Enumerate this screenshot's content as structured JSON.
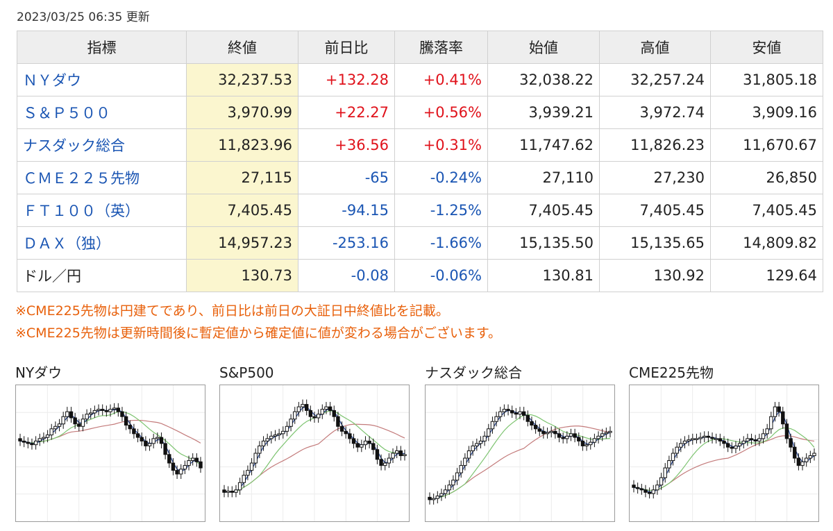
{
  "updated": "2023/03/25 06:35 更新",
  "table": {
    "headers": [
      "指標",
      "終値",
      "前日比",
      "騰落率",
      "始値",
      "高値",
      "安値"
    ],
    "rows": [
      {
        "name": "ＮＹダウ",
        "link": true,
        "close": "32,237.53",
        "change": "+132.28",
        "pct": "+0.41%",
        "open": "32,038.22",
        "high": "32,257.24",
        "low": "31,805.18",
        "dir": "up"
      },
      {
        "name": "Ｓ＆Ｐ５００",
        "link": true,
        "close": "3,970.99",
        "change": "+22.27",
        "pct": "+0.56%",
        "open": "3,939.21",
        "high": "3,972.74",
        "low": "3,909.16",
        "dir": "up"
      },
      {
        "name": "ナスダック総合",
        "link": true,
        "close": "11,823.96",
        "change": "+36.56",
        "pct": "+0.31%",
        "open": "11,747.62",
        "high": "11,826.23",
        "low": "11,670.67",
        "dir": "up"
      },
      {
        "name": "ＣＭＥ２２５先物",
        "link": true,
        "close": "27,115",
        "change": "-65",
        "pct": "-0.24%",
        "open": "27,110",
        "high": "27,230",
        "low": "26,850",
        "dir": "down"
      },
      {
        "name": "ＦＴ１００（英）",
        "link": true,
        "close": "7,405.45",
        "change": "-94.15",
        "pct": "-1.25%",
        "open": "7,405.45",
        "high": "7,405.45",
        "low": "7,405.45",
        "dir": "down"
      },
      {
        "name": "ＤＡＸ（独）",
        "link": true,
        "close": "14,957.23",
        "change": "-253.16",
        "pct": "-1.66%",
        "open": "15,135.50",
        "high": "15,135.65",
        "low": "14,809.82",
        "dir": "down"
      },
      {
        "name": "ドル／円",
        "link": false,
        "close": "130.73",
        "change": "-0.08",
        "pct": "-0.06%",
        "open": "130.81",
        "high": "130.92",
        "low": "129.64",
        "dir": "down"
      }
    ]
  },
  "notes": [
    "※CME225先物は円建てであり、前日比は前日の大証日中終値比を記載。",
    "※CME225先物は更新時間後に暫定値から確定値に値が変わる場合がございます。"
  ],
  "charts": [
    {
      "title": "NYダウ",
      "closes": [
        60,
        59,
        58,
        57,
        60,
        62,
        63,
        65,
        70,
        72,
        74,
        80,
        84,
        79,
        74,
        72,
        78,
        82,
        83,
        85,
        86,
        85,
        84,
        86,
        87,
        84,
        80,
        73,
        70,
        66,
        63,
        60,
        56,
        58,
        62,
        63,
        58,
        49,
        42,
        36,
        33,
        37,
        40,
        44,
        46,
        43,
        38
      ]
    },
    {
      "title": "S&P500",
      "closes": [
        18,
        19,
        18,
        20,
        26,
        32,
        36,
        42,
        50,
        56,
        60,
        62,
        64,
        65,
        66,
        68,
        72,
        78,
        84,
        88,
        90,
        85,
        80,
        79,
        82,
        86,
        88,
        85,
        80,
        72,
        68,
        66,
        62,
        58,
        55,
        57,
        60,
        58,
        53,
        45,
        40,
        42,
        46,
        50,
        52,
        48,
        49
      ]
    },
    {
      "title": "ナスダック総合",
      "closes": [
        12,
        13,
        15,
        17,
        20,
        24,
        28,
        34,
        40,
        46,
        52,
        56,
        58,
        60,
        64,
        70,
        76,
        80,
        84,
        86,
        85,
        83,
        82,
        84,
        81,
        76,
        73,
        70,
        68,
        66,
        67,
        68,
        66,
        63,
        62,
        64,
        66,
        63,
        60,
        56,
        57,
        59,
        62,
        64,
        66,
        67,
        68
      ]
    },
    {
      "title": "CME225先物",
      "closes": [
        22,
        21,
        20,
        18,
        17,
        20,
        24,
        30,
        38,
        44,
        50,
        55,
        58,
        60,
        61,
        62,
        62,
        63,
        64,
        63,
        62,
        62,
        60,
        58,
        55,
        54,
        56,
        58,
        60,
        62,
        61,
        60,
        62,
        66,
        70,
        80,
        88,
        84,
        74,
        62,
        55,
        46,
        40,
        43,
        46,
        48,
        50
      ]
    }
  ],
  "colors": {
    "up": "#e0121b",
    "down": "#1a55b3",
    "link": "#1a55b3",
    "note": "#e8600b",
    "close_bg": "#fbf6cf",
    "ma_short": "#1f3f8f",
    "ma_mid": "#7cc36f",
    "ma_long": "#c37a7a"
  }
}
